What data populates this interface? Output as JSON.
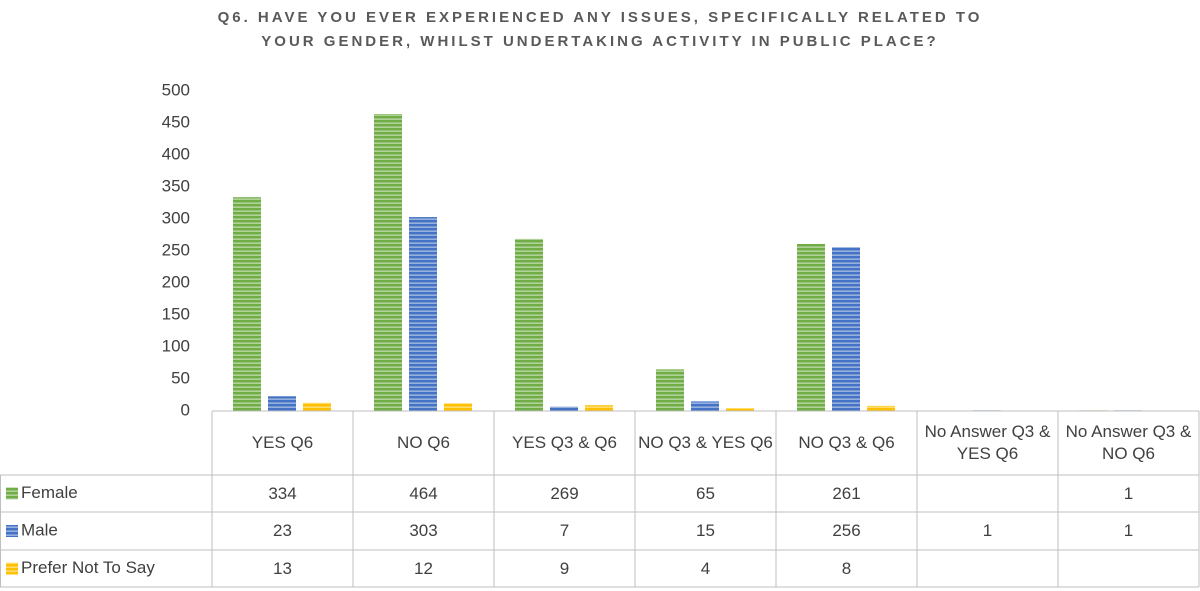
{
  "chart_data": {
    "type": "bar",
    "title": "Q6. HAVE YOU EVER EXPERIENCED ANY ISSUES, SPECIFICALLY RELATED TO YOUR GENDER, WHILST UNDERTAKING ACTIVITY IN PUBLIC PLACE?",
    "categories": [
      "YES Q6",
      "NO Q6",
      "YES Q3 & Q6",
      "NO Q3 & YES Q6",
      "NO Q3 & Q6",
      "No Answer Q3 & YES Q6",
      "No Answer Q3 & NO Q6"
    ],
    "series": [
      {
        "name": "Female",
        "color": "#70ad47",
        "values": [
          334,
          464,
          269,
          65,
          261,
          null,
          1
        ]
      },
      {
        "name": "Male",
        "color": "#4472c4",
        "values": [
          23,
          303,
          7,
          15,
          256,
          1,
          1
        ]
      },
      {
        "name": "Prefer Not To Say",
        "color": "#ffc000",
        "values": [
          13,
          12,
          9,
          4,
          8,
          null,
          null
        ]
      }
    ],
    "ylim": [
      0,
      500
    ],
    "yticks": [
      0,
      50,
      100,
      150,
      200,
      250,
      300,
      350,
      400,
      450,
      500
    ],
    "grid": false,
    "data_table": true
  }
}
